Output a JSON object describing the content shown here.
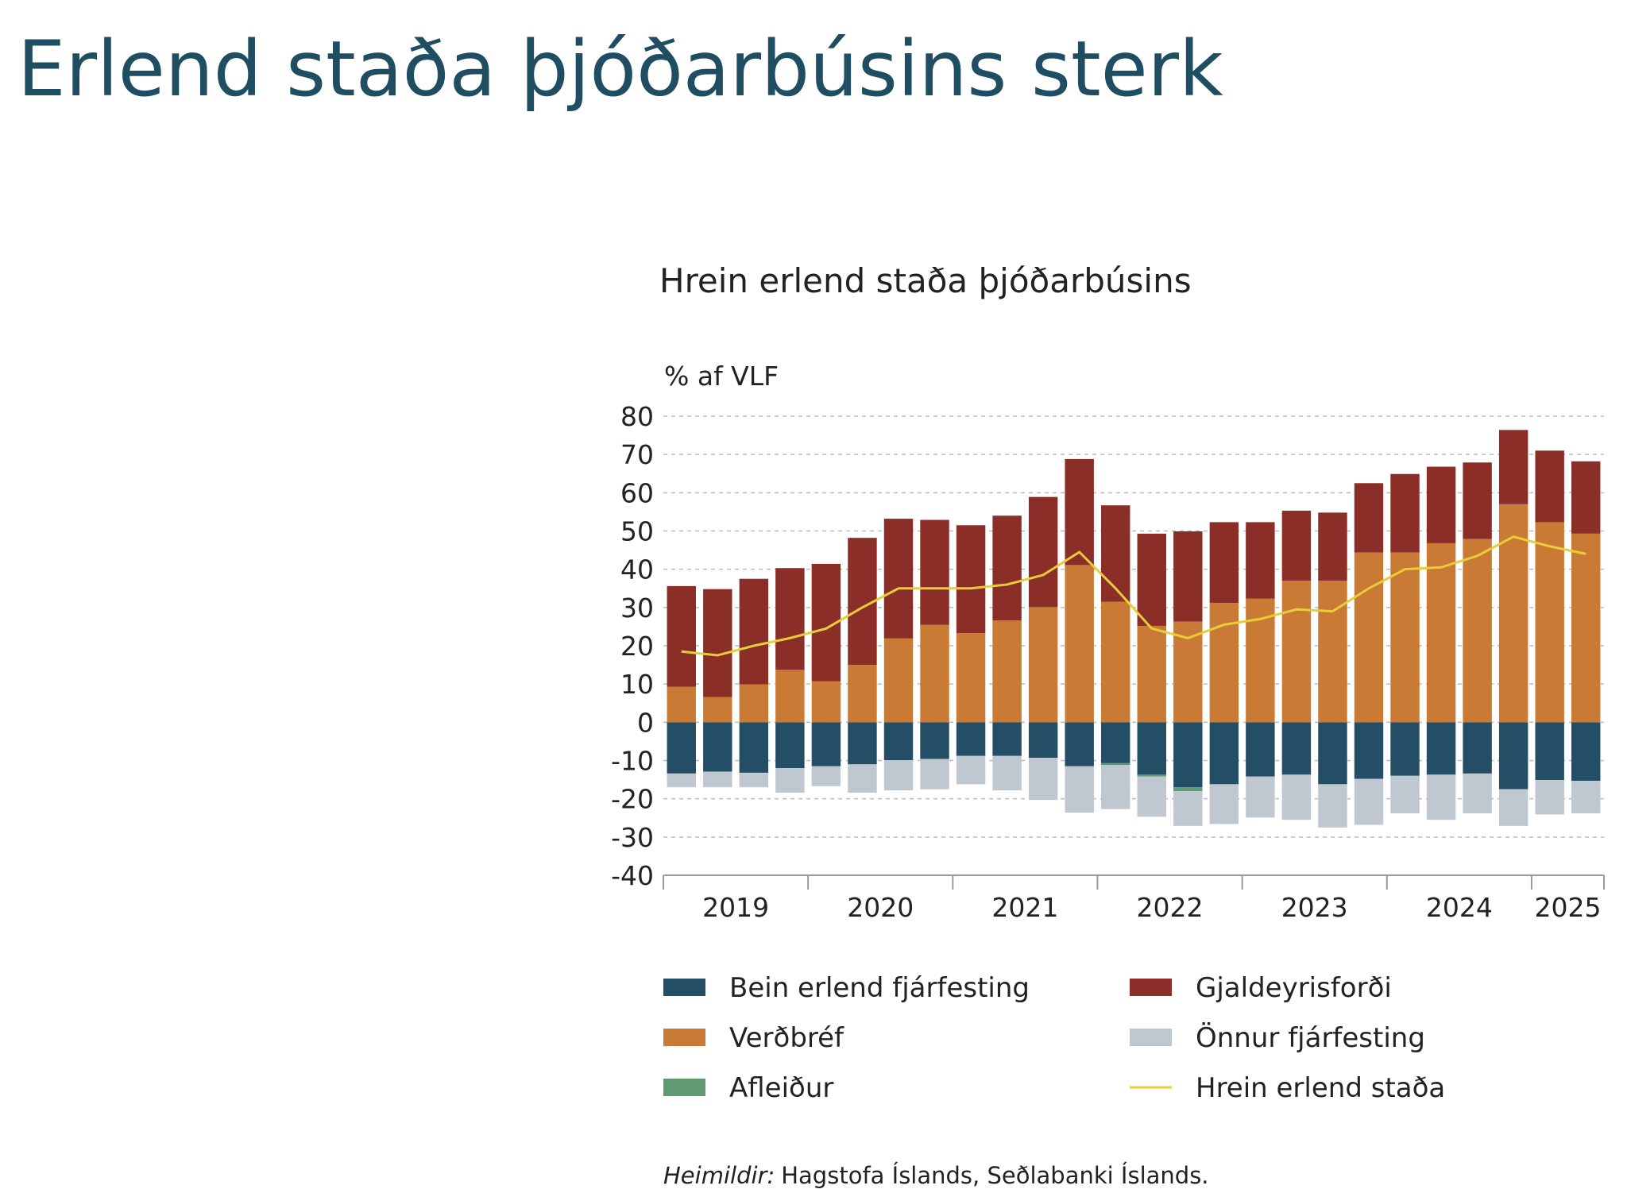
{
  "title": "Erlend staða þjóðarbúsins sterk",
  "chart_data": {
    "type": "bar",
    "title": "Hrein erlend staða þjóðarbúsins",
    "y_label": "% af VLF",
    "categories": [
      "2019",
      null,
      null,
      null,
      "2020",
      null,
      null,
      null,
      "2021",
      null,
      null,
      null,
      "2022",
      null,
      null,
      null,
      "2023",
      null,
      null,
      null,
      "2024",
      null,
      null,
      null,
      "2025",
      null
    ],
    "ylim": [
      -40,
      80
    ],
    "yticks": [
      -40,
      -30,
      -20,
      -10,
      0,
      10,
      20,
      30,
      40,
      50,
      60,
      70,
      80
    ],
    "grid": true,
    "series": [
      {
        "name": "Bein erlend fjárfesting",
        "type": "bar",
        "color": "#234e66",
        "values": [
          -13.4,
          -12.9,
          -13.2,
          -12,
          -11.5,
          -11,
          -9.9,
          -9.6,
          -8.8,
          -8.8,
          -9.3,
          -11.5,
          -10.7,
          -13.7,
          -17,
          -16.2,
          -14.2,
          -13.7,
          -16.2,
          -14.8,
          -14,
          -13.7,
          -13.4,
          -17.5,
          -15.1,
          -15.3
        ]
      },
      {
        "name": "Verðbréf",
        "type": "bar",
        "color": "#c97a35",
        "values": [
          9.3,
          6.6,
          9.9,
          13.7,
          10.7,
          15,
          21.9,
          25.5,
          23.3,
          26.6,
          30.1,
          41.1,
          31.5,
          25.2,
          26.3,
          31.2,
          32.3,
          37,
          37,
          44.4,
          44.4,
          46.8,
          47.9,
          57,
          52.3,
          49.3
        ]
      },
      {
        "name": "Afleiður",
        "type": "bar",
        "color": "#5f9a72",
        "values": [
          0,
          0,
          0,
          0,
          0,
          0,
          0,
          0,
          0,
          0,
          0,
          0,
          -0.5,
          -0.5,
          -1,
          0,
          0,
          0,
          0,
          0,
          0,
          0,
          0,
          0,
          0,
          0
        ]
      },
      {
        "name": "Gjaldeyrisforði",
        "type": "bar",
        "color": "#8a2e27",
        "values": [
          26.3,
          28.2,
          27.6,
          26.6,
          30.7,
          33.2,
          31.3,
          27.4,
          28.2,
          27.4,
          28.8,
          27.7,
          25.2,
          24.1,
          23.6,
          21.1,
          20,
          18.3,
          17.8,
          18.1,
          20.5,
          20,
          20,
          19.4,
          18.7,
          18.9
        ]
      },
      {
        "name": "Önnur fjárfesting",
        "type": "bar",
        "color": "#bfc8d1",
        "values": [
          -3.6,
          -4.1,
          -3.8,
          -6.4,
          -5.2,
          -7.4,
          -7.9,
          -7.9,
          -7.4,
          -9,
          -11,
          -12.1,
          -11.5,
          -10.5,
          -9.1,
          -10.4,
          -10.7,
          -11.8,
          -11.3,
          -12,
          -9.8,
          -11.8,
          -10.4,
          -9.6,
          -9,
          -8.5
        ]
      },
      {
        "name": "Hrein erlend staða",
        "type": "line",
        "color": "#e9cd38",
        "values": [
          18.5,
          17.5,
          20,
          22,
          24.5,
          30,
          35,
          35,
          35,
          36,
          38.5,
          44.5,
          35,
          24.5,
          22,
          25.5,
          27,
          29.5,
          29,
          35,
          40,
          40.5,
          43.5,
          48.5,
          46,
          44
        ]
      }
    ],
    "source": {
      "label": "Heimildir:",
      "text": "Hagstofa Íslands, Seðlabanki Íslands."
    }
  }
}
